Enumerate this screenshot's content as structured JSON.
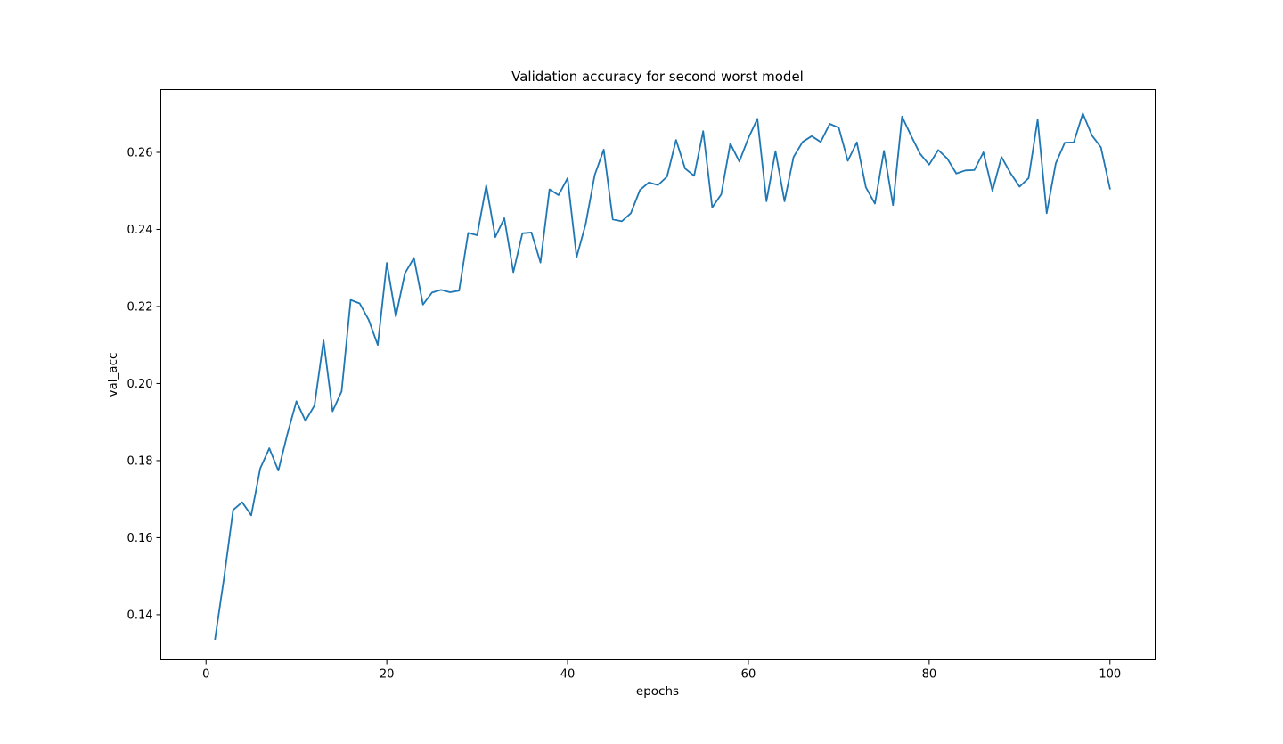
{
  "chart_data": {
    "type": "line",
    "title": "Validation accuracy for second worst model",
    "xlabel": "epochs",
    "ylabel": "val_acc",
    "xlim": [
      -5,
      105
    ],
    "ylim": [
      0.1283,
      0.2763
    ],
    "xticks": [
      0,
      20,
      40,
      60,
      80,
      100
    ],
    "xtick_labels": [
      "0",
      "20",
      "40",
      "60",
      "80",
      "100"
    ],
    "yticks": [
      0.14,
      0.16,
      0.18,
      0.2,
      0.22,
      0.24,
      0.26
    ],
    "ytick_labels": [
      "0.14",
      "0.16",
      "0.18",
      "0.20",
      "0.22",
      "0.24",
      "0.26"
    ],
    "grid": false,
    "legend": "none",
    "line_color": "#1f77b4",
    "series": [
      {
        "x": [
          1,
          2,
          3,
          4,
          5,
          6,
          7,
          8,
          9,
          10,
          11,
          12,
          13,
          14,
          15,
          16,
          17,
          18,
          19,
          20,
          21,
          22,
          23,
          24,
          25,
          26,
          27,
          28,
          29,
          30,
          31,
          32,
          33,
          34,
          35,
          36,
          37,
          38,
          39,
          40,
          41,
          42,
          43,
          44,
          45,
          46,
          47,
          48,
          49,
          50,
          51,
          52,
          53,
          54,
          55,
          56,
          57,
          58,
          59,
          60,
          61,
          62,
          63,
          64,
          65,
          66,
          67,
          68,
          69,
          70,
          71,
          72,
          73,
          74,
          75,
          76,
          77,
          78,
          79,
          80,
          81,
          82,
          83,
          84,
          85,
          86,
          87,
          88,
          89,
          90,
          91,
          92,
          93,
          94,
          95,
          96,
          97,
          98,
          99,
          100
        ],
        "values": [
          0.1337,
          0.1497,
          0.1672,
          0.1692,
          0.1658,
          0.178,
          0.1832,
          0.1774,
          0.1869,
          0.1954,
          0.1903,
          0.1943,
          0.2112,
          0.1928,
          0.198,
          0.2217,
          0.2208,
          0.2165,
          0.21,
          0.2313,
          0.2174,
          0.2286,
          0.2326,
          0.2205,
          0.2236,
          0.2243,
          0.2237,
          0.2241,
          0.2391,
          0.2385,
          0.2514,
          0.238,
          0.2429,
          0.2289,
          0.239,
          0.2392,
          0.2314,
          0.2504,
          0.2489,
          0.2533,
          0.2328,
          0.2414,
          0.2541,
          0.2607,
          0.2426,
          0.2421,
          0.2442,
          0.2502,
          0.2522,
          0.2515,
          0.2537,
          0.2632,
          0.2558,
          0.2539,
          0.2655,
          0.2457,
          0.2491,
          0.2623,
          0.2576,
          0.2637,
          0.2687,
          0.2473,
          0.2603,
          0.2473,
          0.2588,
          0.2627,
          0.2642,
          0.2627,
          0.2674,
          0.2664,
          0.2578,
          0.2626,
          0.2509,
          0.2467,
          0.2604,
          0.2463,
          0.2693,
          0.2643,
          0.2596,
          0.2568,
          0.2606,
          0.2584,
          0.2545,
          0.2553,
          0.2554,
          0.26,
          0.25,
          0.2588,
          0.2546,
          0.2511,
          0.2533,
          0.2685,
          0.2442,
          0.2571,
          0.2625,
          0.2626,
          0.2701,
          0.2644,
          0.2613,
          0.2506
        ]
      }
    ]
  }
}
